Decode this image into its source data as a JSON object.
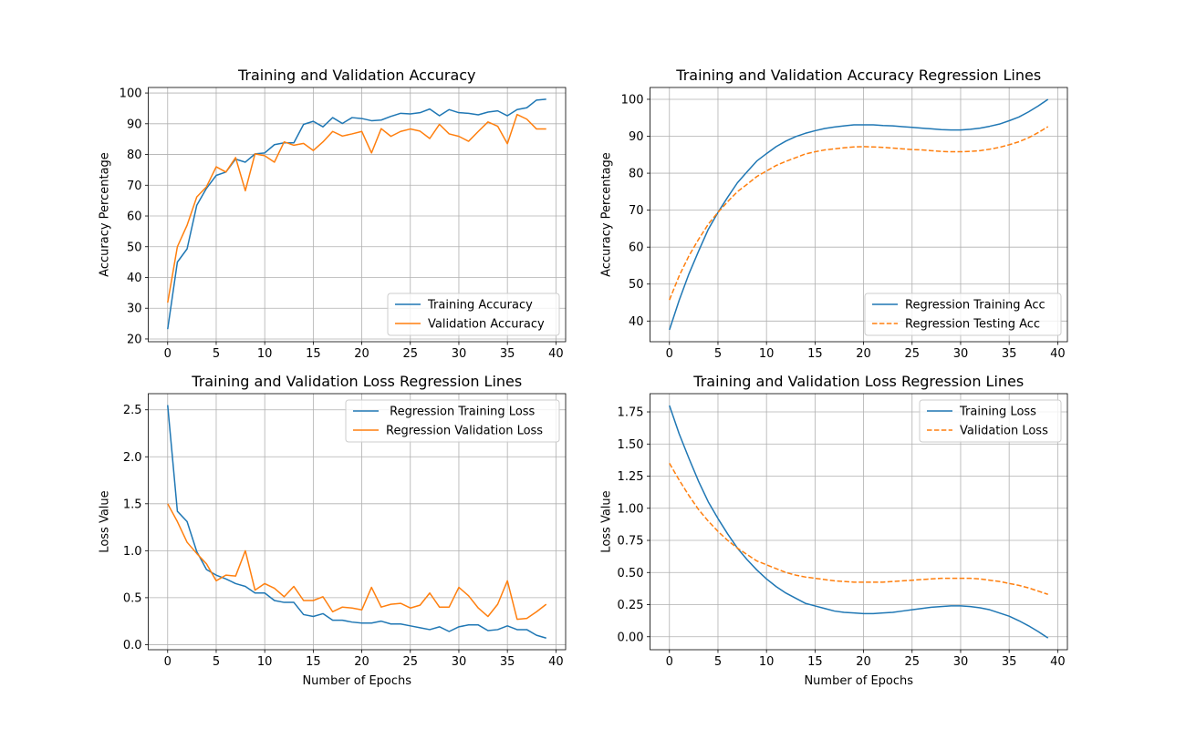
{
  "chart_data": [
    {
      "type": "line",
      "title": "Training and Validation Accuracy",
      "xlabel": "",
      "ylabel": "Accuracy Percentage",
      "xlim": [
        -2,
        41
      ],
      "ylim": [
        19.1,
        101.8
      ],
      "xticks": [
        0,
        5,
        10,
        15,
        20,
        25,
        30,
        35,
        40
      ],
      "yticks": [
        20,
        30,
        40,
        50,
        60,
        70,
        80,
        90,
        100
      ],
      "grid": true,
      "legend_position": "lower-right",
      "series": [
        {
          "name": "Training Accuracy",
          "color": "#1f77b4",
          "dash": "solid",
          "x": [
            0,
            1,
            2,
            3,
            4,
            5,
            6,
            7,
            8,
            9,
            10,
            11,
            12,
            13,
            14,
            15,
            16,
            17,
            18,
            19,
            20,
            21,
            22,
            23,
            24,
            25,
            26,
            27,
            28,
            29,
            30,
            31,
            32,
            33,
            34,
            35,
            36,
            37,
            38,
            39
          ],
          "y": [
            23.2,
            45,
            49.3,
            63.5,
            69,
            73.2,
            74.3,
            78.5,
            77.5,
            80.2,
            80.5,
            83.2,
            83.8,
            83.8,
            89.8,
            90.8,
            89,
            92,
            90.1,
            92,
            91.7,
            91,
            91.2,
            92.4,
            93.4,
            93.2,
            93.6,
            94.8,
            92.6,
            94.6,
            93.6,
            93.4,
            92.9,
            93.8,
            94.2,
            92.6,
            94.6,
            95.2,
            97.7,
            98
          ]
        },
        {
          "name": "Validation Accuracy",
          "color": "#ff7f0e",
          "dash": "solid",
          "x": [
            0,
            1,
            2,
            3,
            4,
            5,
            6,
            7,
            8,
            9,
            10,
            11,
            12,
            13,
            14,
            15,
            16,
            17,
            18,
            19,
            20,
            21,
            22,
            23,
            24,
            25,
            26,
            27,
            28,
            29,
            30,
            31,
            32,
            33,
            34,
            35,
            36,
            37,
            38,
            39
          ],
          "y": [
            31.8,
            50,
            57,
            66.2,
            69.5,
            76,
            74.3,
            79,
            68.2,
            80.2,
            79.6,
            77.5,
            84.1,
            83,
            83.6,
            81.3,
            84.1,
            87.5,
            86,
            86.7,
            87.5,
            80.5,
            88.4,
            85.9,
            87.5,
            88.3,
            87.6,
            85.2,
            89.8,
            86.7,
            85.9,
            84.3,
            87.5,
            90.6,
            89.2,
            83.5,
            93,
            91.5,
            88.3,
            88.3
          ]
        }
      ]
    },
    {
      "type": "line",
      "title": "Training and Validation Accuracy Regression Lines",
      "xlabel": "",
      "ylabel": "Accuracy Percentage",
      "xlim": [
        -2,
        41
      ],
      "ylim": [
        34.4,
        103.2
      ],
      "xticks": [
        0,
        5,
        10,
        15,
        20,
        25,
        30,
        35,
        40
      ],
      "yticks": [
        40,
        50,
        60,
        70,
        80,
        90,
        100
      ],
      "grid": true,
      "legend_position": "lower-right",
      "series": [
        {
          "name": "Regression Training Acc",
          "color": "#1f77b4",
          "dash": "solid",
          "x": [
            0,
            1,
            2,
            3,
            4,
            5,
            6,
            7,
            8,
            9,
            10,
            11,
            12,
            13,
            14,
            15,
            16,
            17,
            18,
            19,
            20,
            21,
            22,
            23,
            24,
            25,
            26,
            27,
            28,
            29,
            30,
            31,
            32,
            33,
            34,
            35,
            36,
            37,
            38,
            39
          ],
          "y": [
            37.6,
            45.6,
            52.7,
            58.9,
            64.8,
            69.4,
            73.5,
            77.4,
            80.4,
            83.3,
            85.3,
            87.2,
            88.7,
            89.9,
            90.8,
            91.5,
            92.1,
            92.5,
            92.8,
            93.1,
            93.1,
            93.1,
            92.9,
            92.8,
            92.6,
            92.4,
            92.2,
            92.0,
            91.8,
            91.7,
            91.7,
            91.9,
            92.2,
            92.7,
            93.3,
            94.2,
            95.2,
            96.6,
            98.2,
            100.0
          ]
        },
        {
          "name": "Regression Testing Acc",
          "color": "#ff7f0e",
          "dash": "dashed",
          "x": [
            0,
            1,
            2,
            3,
            4,
            5,
            6,
            7,
            8,
            9,
            10,
            11,
            12,
            13,
            14,
            15,
            16,
            17,
            18,
            19,
            20,
            21,
            22,
            23,
            24,
            25,
            26,
            27,
            28,
            29,
            30,
            31,
            32,
            33,
            34,
            35,
            36,
            37,
            38,
            39
          ],
          "y": [
            45.7,
            52.2,
            57.6,
            62.1,
            66.2,
            69.4,
            72.3,
            75.0,
            77.0,
            79.1,
            80.6,
            82.1,
            83.2,
            84.2,
            85.2,
            85.8,
            86.3,
            86.6,
            86.9,
            87.1,
            87.2,
            87.1,
            87.0,
            86.8,
            86.6,
            86.4,
            86.3,
            86.1,
            85.9,
            85.8,
            85.8,
            85.9,
            86.1,
            86.5,
            87.0,
            87.7,
            88.5,
            89.6,
            91.0,
            92.6
          ]
        }
      ]
    },
    {
      "type": "line",
      "title": "Training and Validation Loss Regression Lines",
      "xlabel": "Number of Epochs",
      "ylabel": "Loss Value",
      "xlim": [
        -2,
        41
      ],
      "ylim": [
        -0.054,
        2.672
      ],
      "xticks": [
        0,
        5,
        10,
        15,
        20,
        25,
        30,
        35,
        40
      ],
      "yticks": [
        0.0,
        0.5,
        1.0,
        1.5,
        2.0,
        2.5
      ],
      "ytick_labels": [
        "0.0",
        "0.5",
        "1.0",
        "1.5",
        "2.0",
        "2.5"
      ],
      "grid": true,
      "legend_position": "upper-right",
      "series": [
        {
          "name": " Regression Training Loss",
          "color": "#1f77b4",
          "dash": "solid",
          "x": [
            0,
            1,
            2,
            3,
            4,
            5,
            6,
            7,
            8,
            9,
            10,
            11,
            12,
            13,
            14,
            15,
            16,
            17,
            18,
            19,
            20,
            21,
            22,
            23,
            24,
            25,
            26,
            27,
            28,
            29,
            30,
            31,
            32,
            33,
            34,
            35,
            36,
            37,
            38,
            39
          ],
          "y": [
            2.55,
            1.42,
            1.31,
            0.99,
            0.8,
            0.74,
            0.7,
            0.65,
            0.62,
            0.55,
            0.55,
            0.47,
            0.45,
            0.45,
            0.32,
            0.3,
            0.33,
            0.26,
            0.26,
            0.24,
            0.23,
            0.23,
            0.25,
            0.22,
            0.22,
            0.2,
            0.18,
            0.16,
            0.19,
            0.14,
            0.19,
            0.21,
            0.21,
            0.15,
            0.16,
            0.2,
            0.16,
            0.16,
            0.1,
            0.07
          ]
        },
        {
          "name": "Regression Validation Loss",
          "color": "#ff7f0e",
          "dash": "solid",
          "x": [
            0,
            1,
            2,
            3,
            4,
            5,
            6,
            7,
            8,
            9,
            10,
            11,
            12,
            13,
            14,
            15,
            16,
            17,
            18,
            19,
            20,
            21,
            22,
            23,
            24,
            25,
            26,
            27,
            28,
            29,
            30,
            31,
            32,
            33,
            34,
            35,
            36,
            37,
            38,
            39
          ],
          "y": [
            1.5,
            1.31,
            1.09,
            0.97,
            0.86,
            0.68,
            0.74,
            0.73,
            1.0,
            0.58,
            0.65,
            0.6,
            0.51,
            0.62,
            0.47,
            0.47,
            0.51,
            0.35,
            0.4,
            0.39,
            0.37,
            0.61,
            0.4,
            0.43,
            0.44,
            0.39,
            0.42,
            0.55,
            0.4,
            0.4,
            0.61,
            0.52,
            0.39,
            0.3,
            0.43,
            0.68,
            0.27,
            0.28,
            0.35,
            0.43
          ]
        }
      ]
    },
    {
      "type": "line",
      "title": "Training and Validation Loss Regression Lines",
      "xlabel": "Number of Epochs",
      "ylabel": "Loss Value",
      "xlim": [
        -2,
        41
      ],
      "ylim": [
        -0.101,
        1.892
      ],
      "xticks": [
        0,
        5,
        10,
        15,
        20,
        25,
        30,
        35,
        40
      ],
      "yticks": [
        0.0,
        0.25,
        0.5,
        0.75,
        1.0,
        1.25,
        1.5,
        1.75
      ],
      "ytick_labels": [
        "0.00",
        "0.25",
        "0.50",
        "0.75",
        "1.00",
        "1.25",
        "1.50",
        "1.75"
      ],
      "grid": true,
      "legend_position": "upper-right",
      "series": [
        {
          "name": "Training Loss",
          "color": "#1f77b4",
          "dash": "solid",
          "x": [
            0,
            1,
            2,
            3,
            4,
            5,
            6,
            7,
            8,
            9,
            10,
            11,
            12,
            13,
            14,
            15,
            16,
            17,
            18,
            19,
            20,
            21,
            22,
            23,
            24,
            25,
            26,
            27,
            28,
            29,
            30,
            31,
            32,
            33,
            34,
            35,
            36,
            37,
            38,
            39
          ],
          "y": [
            1.8,
            1.58,
            1.39,
            1.21,
            1.05,
            0.92,
            0.8,
            0.69,
            0.6,
            0.52,
            0.45,
            0.39,
            0.34,
            0.3,
            0.26,
            0.24,
            0.22,
            0.2,
            0.19,
            0.185,
            0.18,
            0.18,
            0.185,
            0.19,
            0.2,
            0.21,
            0.22,
            0.23,
            0.235,
            0.24,
            0.24,
            0.235,
            0.225,
            0.21,
            0.185,
            0.16,
            0.125,
            0.085,
            0.04,
            -0.01
          ]
        },
        {
          "name": "Validation Loss",
          "color": "#ff7f0e",
          "dash": "dashed",
          "x": [
            0,
            1,
            2,
            3,
            4,
            5,
            6,
            7,
            8,
            9,
            10,
            11,
            12,
            13,
            14,
            15,
            16,
            17,
            18,
            19,
            20,
            21,
            22,
            23,
            24,
            25,
            26,
            27,
            28,
            29,
            30,
            31,
            32,
            33,
            34,
            35,
            36,
            37,
            38,
            39
          ],
          "y": [
            1.35,
            1.22,
            1.1,
            0.99,
            0.9,
            0.82,
            0.75,
            0.69,
            0.64,
            0.59,
            0.56,
            0.53,
            0.5,
            0.48,
            0.465,
            0.455,
            0.445,
            0.435,
            0.43,
            0.425,
            0.425,
            0.425,
            0.425,
            0.43,
            0.435,
            0.44,
            0.445,
            0.45,
            0.455,
            0.455,
            0.455,
            0.455,
            0.45,
            0.44,
            0.43,
            0.415,
            0.4,
            0.38,
            0.355,
            0.33
          ]
        }
      ]
    }
  ]
}
